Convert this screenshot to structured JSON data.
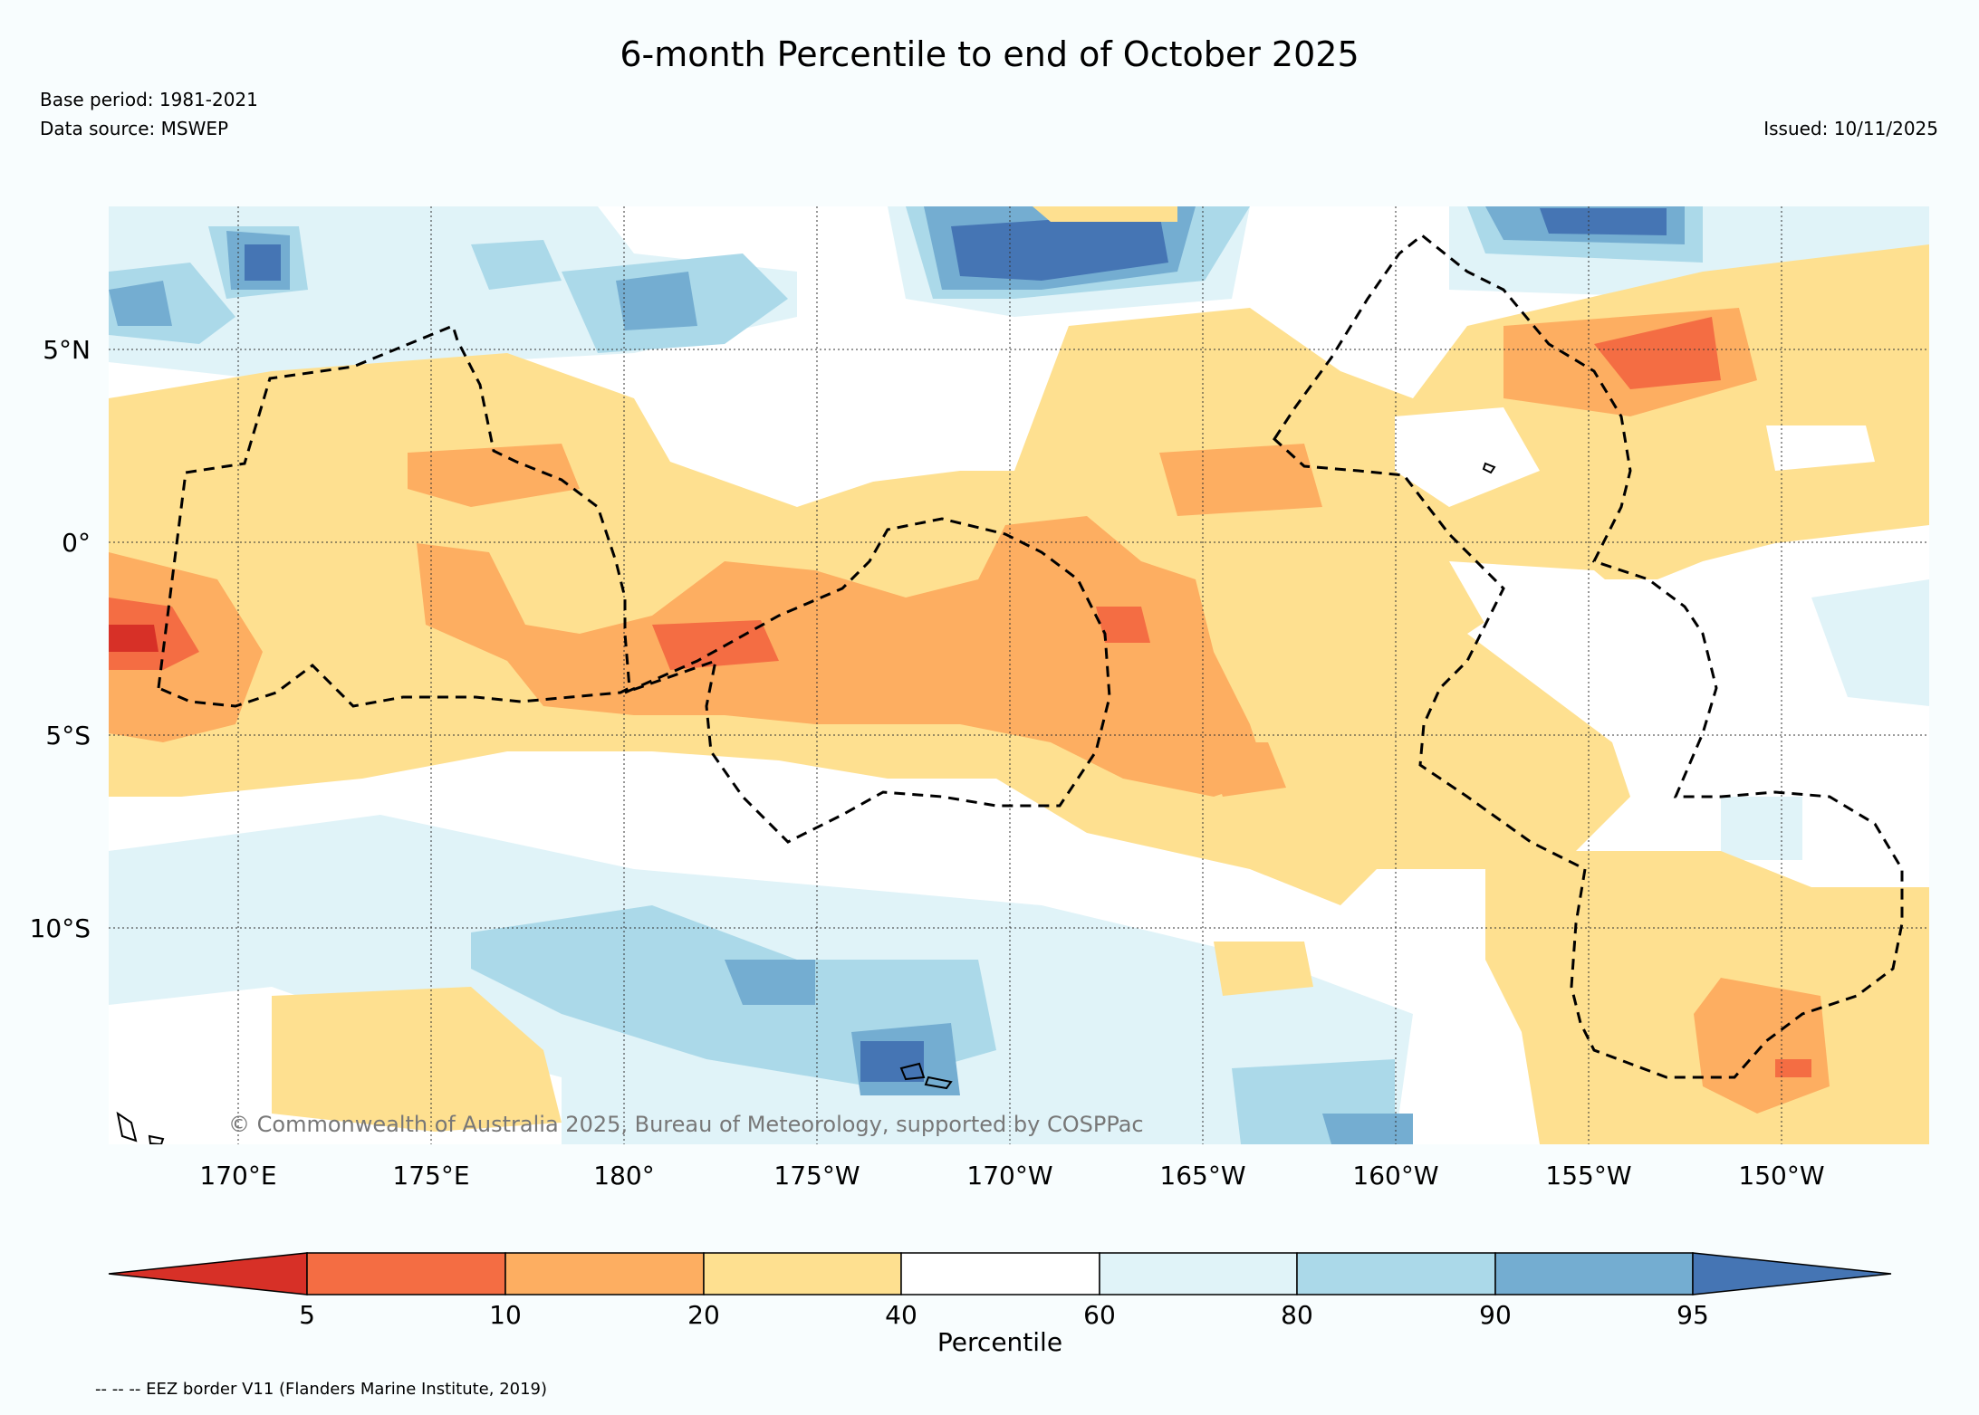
{
  "title": "6-month Percentile to end of October 2025",
  "base_period": "Base period: 1981-2021",
  "data_source": "Data source: MSWEP",
  "issued": "Issued: 10/11/2025",
  "copyright": "© Commonwealth of Australia 2025, Bureau of Meteorology, supported by COSPPac",
  "lat_labels": [
    "5°N",
    "0°",
    "5°S",
    "10°S"
  ],
  "lon_labels": [
    "170°E",
    "175°E",
    "180°",
    "175°W",
    "170°W",
    "165°W",
    "160°W",
    "155°W",
    "150°W"
  ],
  "colorbar": {
    "label": "Percentile",
    "ticks": [
      "5",
      "10",
      "20",
      "40",
      "60",
      "80",
      "90",
      "95"
    ],
    "colors": [
      "#d73027",
      "#f46d43",
      "#fdae61",
      "#fee090",
      "#ffffff",
      "#e0f3f8",
      "#abd9e9",
      "#74add1",
      "#4575b4"
    ]
  },
  "eez_note": "-- -- -- EEZ border V11 (Flanders Marine Institute, 2019)"
}
